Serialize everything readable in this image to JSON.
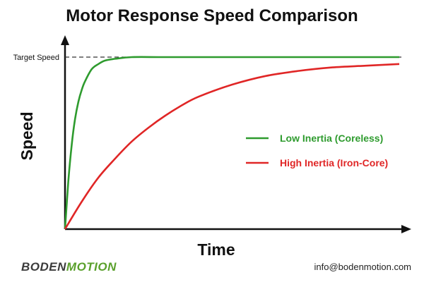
{
  "chart_data": {
    "type": "line",
    "title": "Motor Response Speed Comparison",
    "xlabel": "Time",
    "ylabel": "Speed",
    "xlim": [
      0,
      100
    ],
    "ylim": [
      0,
      100
    ],
    "reference_line": {
      "label": "Target Speed",
      "value": 100
    },
    "legend_position": "center-right",
    "grid": false,
    "series": [
      {
        "name": "Low Inertia (Coreless)",
        "color": "#2e9b2e",
        "x": [
          0,
          1,
          2,
          3,
          4,
          5,
          6,
          8,
          10,
          12,
          15,
          20,
          30,
          50,
          75,
          100
        ],
        "y": [
          0,
          28,
          49,
          64,
          74,
          81,
          86,
          93,
          96,
          98,
          99,
          100,
          100,
          100,
          100,
          100
        ]
      },
      {
        "name": "High Inertia (Iron-Core)",
        "color": "#e02626",
        "x": [
          0,
          5,
          10,
          15,
          20,
          25,
          30,
          35,
          40,
          50,
          60,
          70,
          80,
          90,
          100
        ],
        "y": [
          0,
          16,
          30,
          41,
          51,
          59,
          66,
          72,
          77,
          84,
          89,
          92,
          94,
          95,
          96
        ]
      }
    ]
  },
  "footer": {
    "brand_left": "BODEN",
    "brand_right": "MOTION",
    "email": "info@bodenmotion.com"
  }
}
